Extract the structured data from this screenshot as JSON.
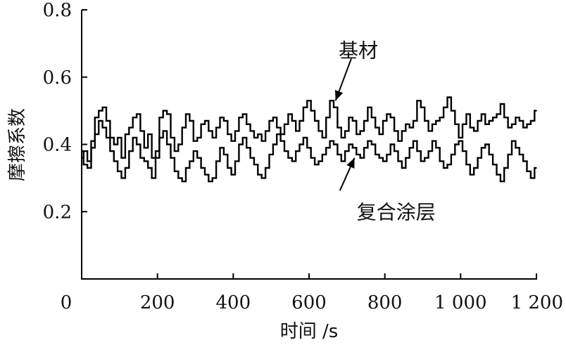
{
  "chart_data": {
    "type": "line",
    "title": "",
    "xlabel": "时间 /s",
    "ylabel": "摩擦系数",
    "xlim": [
      0,
      1200
    ],
    "ylim": [
      0,
      0.8
    ],
    "x_ticks": [
      0,
      200,
      400,
      600,
      800,
      1000,
      1200
    ],
    "x_tick_labels": [
      "0",
      "200",
      "400",
      "600",
      "800",
      "1 000",
      "1 200"
    ],
    "y_ticks": [
      0.2,
      0.4,
      0.6,
      0.8
    ],
    "y_tick_labels": [
      "0.2",
      "0.4",
      "0.6",
      "0.8"
    ],
    "grid": false,
    "legend": "none",
    "annotations": [
      {
        "text": "基材",
        "series": "基材",
        "point_at": [
          670,
          0.53
        ],
        "label_at": [
          730,
          0.68
        ]
      },
      {
        "text": "复合涂层",
        "series": "复合涂层",
        "point_at": [
          720,
          0.36
        ],
        "label_at": [
          830,
          0.2
        ]
      }
    ],
    "series": [
      {
        "name": "基材",
        "color": "#000000",
        "x": [
          0,
          10,
          20,
          30,
          40,
          50,
          60,
          70,
          80,
          90,
          100,
          110,
          120,
          130,
          140,
          150,
          160,
          170,
          180,
          190,
          200,
          210,
          220,
          230,
          240,
          250,
          260,
          270,
          280,
          290,
          300,
          310,
          320,
          330,
          340,
          350,
          360,
          370,
          380,
          390,
          400,
          410,
          420,
          430,
          440,
          450,
          460,
          470,
          480,
          490,
          500,
          510,
          520,
          530,
          540,
          550,
          560,
          570,
          580,
          590,
          600,
          610,
          620,
          630,
          640,
          650,
          660,
          670,
          680,
          690,
          700,
          710,
          720,
          730,
          740,
          750,
          760,
          770,
          780,
          790,
          800,
          810,
          820,
          830,
          840,
          850,
          860,
          870,
          880,
          890,
          900,
          910,
          920,
          930,
          940,
          950,
          960,
          970,
          980,
          990,
          1000,
          1010,
          1020,
          1030,
          1040,
          1050,
          1060,
          1070,
          1080,
          1090,
          1100,
          1110,
          1120,
          1130,
          1140,
          1150,
          1160,
          1170,
          1180,
          1190,
          1200
        ],
        "values": [
          0.36,
          0.38,
          0.35,
          0.41,
          0.48,
          0.5,
          0.51,
          0.47,
          0.42,
          0.4,
          0.42,
          0.36,
          0.43,
          0.45,
          0.48,
          0.49,
          0.44,
          0.39,
          0.43,
          0.36,
          0.38,
          0.48,
          0.5,
          0.49,
          0.42,
          0.38,
          0.4,
          0.45,
          0.49,
          0.47,
          0.41,
          0.42,
          0.46,
          0.47,
          0.44,
          0.42,
          0.45,
          0.48,
          0.47,
          0.43,
          0.41,
          0.44,
          0.48,
          0.49,
          0.46,
          0.44,
          0.42,
          0.43,
          0.41,
          0.44,
          0.47,
          0.48,
          0.45,
          0.43,
          0.46,
          0.49,
          0.47,
          0.44,
          0.47,
          0.51,
          0.53,
          0.5,
          0.47,
          0.44,
          0.42,
          0.48,
          0.53,
          0.51,
          0.45,
          0.42,
          0.44,
          0.48,
          0.47,
          0.43,
          0.44,
          0.47,
          0.51,
          0.48,
          0.45,
          0.43,
          0.47,
          0.49,
          0.48,
          0.44,
          0.41,
          0.44,
          0.46,
          0.45,
          0.47,
          0.53,
          0.51,
          0.47,
          0.44,
          0.46,
          0.47,
          0.48,
          0.51,
          0.54,
          0.5,
          0.46,
          0.42,
          0.46,
          0.49,
          0.45,
          0.44,
          0.47,
          0.49,
          0.46,
          0.47,
          0.48,
          0.49,
          0.52,
          0.48,
          0.45,
          0.46,
          0.48,
          0.47,
          0.45,
          0.46,
          0.47,
          0.5
        ]
      },
      {
        "name": "复合涂层",
        "color": "#000000",
        "x": [
          0,
          10,
          20,
          30,
          40,
          50,
          60,
          70,
          80,
          90,
          100,
          110,
          120,
          130,
          140,
          150,
          160,
          170,
          180,
          190,
          200,
          210,
          220,
          230,
          240,
          250,
          260,
          270,
          280,
          290,
          300,
          310,
          320,
          330,
          340,
          350,
          360,
          370,
          380,
          390,
          400,
          410,
          420,
          430,
          440,
          450,
          460,
          470,
          480,
          490,
          500,
          510,
          520,
          530,
          540,
          550,
          560,
          570,
          580,
          590,
          600,
          610,
          620,
          630,
          640,
          650,
          660,
          670,
          680,
          690,
          700,
          710,
          720,
          730,
          740,
          750,
          760,
          770,
          780,
          790,
          800,
          810,
          820,
          830,
          840,
          850,
          860,
          870,
          880,
          890,
          900,
          910,
          920,
          930,
          940,
          950,
          960,
          970,
          980,
          990,
          1000,
          1010,
          1020,
          1030,
          1040,
          1050,
          1060,
          1070,
          1080,
          1090,
          1100,
          1110,
          1120,
          1130,
          1140,
          1150,
          1160,
          1170,
          1180,
          1190,
          1200
        ],
        "values": [
          0.38,
          0.34,
          0.33,
          0.39,
          0.43,
          0.47,
          0.45,
          0.42,
          0.38,
          0.35,
          0.32,
          0.3,
          0.33,
          0.38,
          0.42,
          0.4,
          0.36,
          0.35,
          0.33,
          0.3,
          0.36,
          0.42,
          0.44,
          0.4,
          0.36,
          0.32,
          0.3,
          0.29,
          0.33,
          0.35,
          0.38,
          0.36,
          0.33,
          0.31,
          0.29,
          0.3,
          0.35,
          0.39,
          0.37,
          0.33,
          0.31,
          0.35,
          0.4,
          0.42,
          0.39,
          0.36,
          0.34,
          0.31,
          0.3,
          0.33,
          0.37,
          0.4,
          0.43,
          0.41,
          0.38,
          0.36,
          0.35,
          0.38,
          0.4,
          0.42,
          0.39,
          0.36,
          0.34,
          0.35,
          0.37,
          0.39,
          0.41,
          0.4,
          0.37,
          0.35,
          0.38,
          0.4,
          0.39,
          0.37,
          0.36,
          0.39,
          0.41,
          0.4,
          0.37,
          0.36,
          0.35,
          0.37,
          0.4,
          0.38,
          0.35,
          0.33,
          0.36,
          0.39,
          0.41,
          0.38,
          0.35,
          0.36,
          0.38,
          0.41,
          0.39,
          0.35,
          0.33,
          0.34,
          0.37,
          0.4,
          0.41,
          0.38,
          0.34,
          0.31,
          0.33,
          0.36,
          0.39,
          0.4,
          0.37,
          0.34,
          0.31,
          0.29,
          0.33,
          0.37,
          0.41,
          0.39,
          0.37,
          0.35,
          0.32,
          0.3,
          0.33
        ]
      }
    ]
  }
}
